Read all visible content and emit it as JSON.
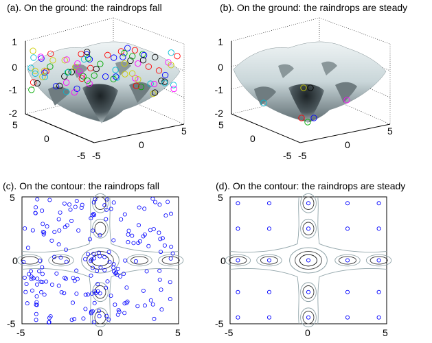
{
  "chart_data": [
    {
      "type": "surface3d",
      "title": "(a). On the ground: the raindrops fall",
      "z_ticks": [
        "1",
        "0",
        "-1",
        "-2"
      ],
      "y_ticks": [
        "5",
        "0",
        "-5"
      ],
      "x_ticks": [
        "-5",
        "0",
        "5"
      ],
      "zlim": [
        -2,
        1
      ],
      "xlim": [
        -5,
        5
      ],
      "ylim": [
        -5,
        5
      ],
      "grid": true,
      "markers": "scattered circles (random positions)"
    },
    {
      "type": "surface3d",
      "title": "(b). On the ground: the raindrops are steady",
      "z_ticks": [
        "1",
        "0",
        "-1",
        "-2"
      ],
      "y_ticks": [
        "5",
        "0",
        "-5"
      ],
      "x_ticks": [
        "-5",
        "0",
        "5"
      ],
      "zlim": [
        -2,
        1
      ],
      "xlim": [
        -5,
        5
      ],
      "ylim": [
        -5,
        5
      ],
      "grid": true,
      "markers": "circles settled at local minima"
    },
    {
      "type": "contour",
      "title": "(c). On the contour: the raindrops fall",
      "x_ticks": [
        "-5",
        "0",
        "5"
      ],
      "y_ticks": [
        "5",
        "0",
        "-5"
      ],
      "xlim": [
        -5,
        5
      ],
      "ylim": [
        -5,
        5
      ],
      "marker_color": "#0000ff",
      "line_color": "#8fa3a8",
      "markers": "random scatter"
    },
    {
      "type": "contour",
      "title": "(d). On the contour: the raindrops are steady",
      "x_ticks": [
        "-5",
        "0",
        "5"
      ],
      "y_ticks": [
        "5",
        "0",
        "-5"
      ],
      "xlim": [
        -5,
        5
      ],
      "ylim": [
        -5,
        5
      ],
      "marker_color": "#0000ff",
      "line_color": "#8fa3a8",
      "steady_points": [
        [
          -4.5,
          4.5
        ],
        [
          -2.5,
          4.5
        ],
        [
          0,
          4.5
        ],
        [
          2.5,
          4.5
        ],
        [
          4.5,
          4.5
        ],
        [
          -4.5,
          2.5
        ],
        [
          -2.5,
          2.5
        ],
        [
          0,
          2.5
        ],
        [
          2.5,
          2.5
        ],
        [
          4.5,
          2.5
        ],
        [
          -4.5,
          0
        ],
        [
          -2.5,
          0
        ],
        [
          0,
          0
        ],
        [
          2.5,
          0
        ],
        [
          4.5,
          0
        ],
        [
          -4.5,
          -2.5
        ],
        [
          -2.5,
          -2.5
        ],
        [
          0,
          -2.5
        ],
        [
          2.5,
          -2.5
        ],
        [
          4.5,
          -2.5
        ],
        [
          -4.5,
          -4.5
        ],
        [
          -2.5,
          -4.5
        ],
        [
          0,
          -4.5
        ],
        [
          2.5,
          -4.5
        ],
        [
          4.5,
          -4.5
        ]
      ]
    }
  ]
}
